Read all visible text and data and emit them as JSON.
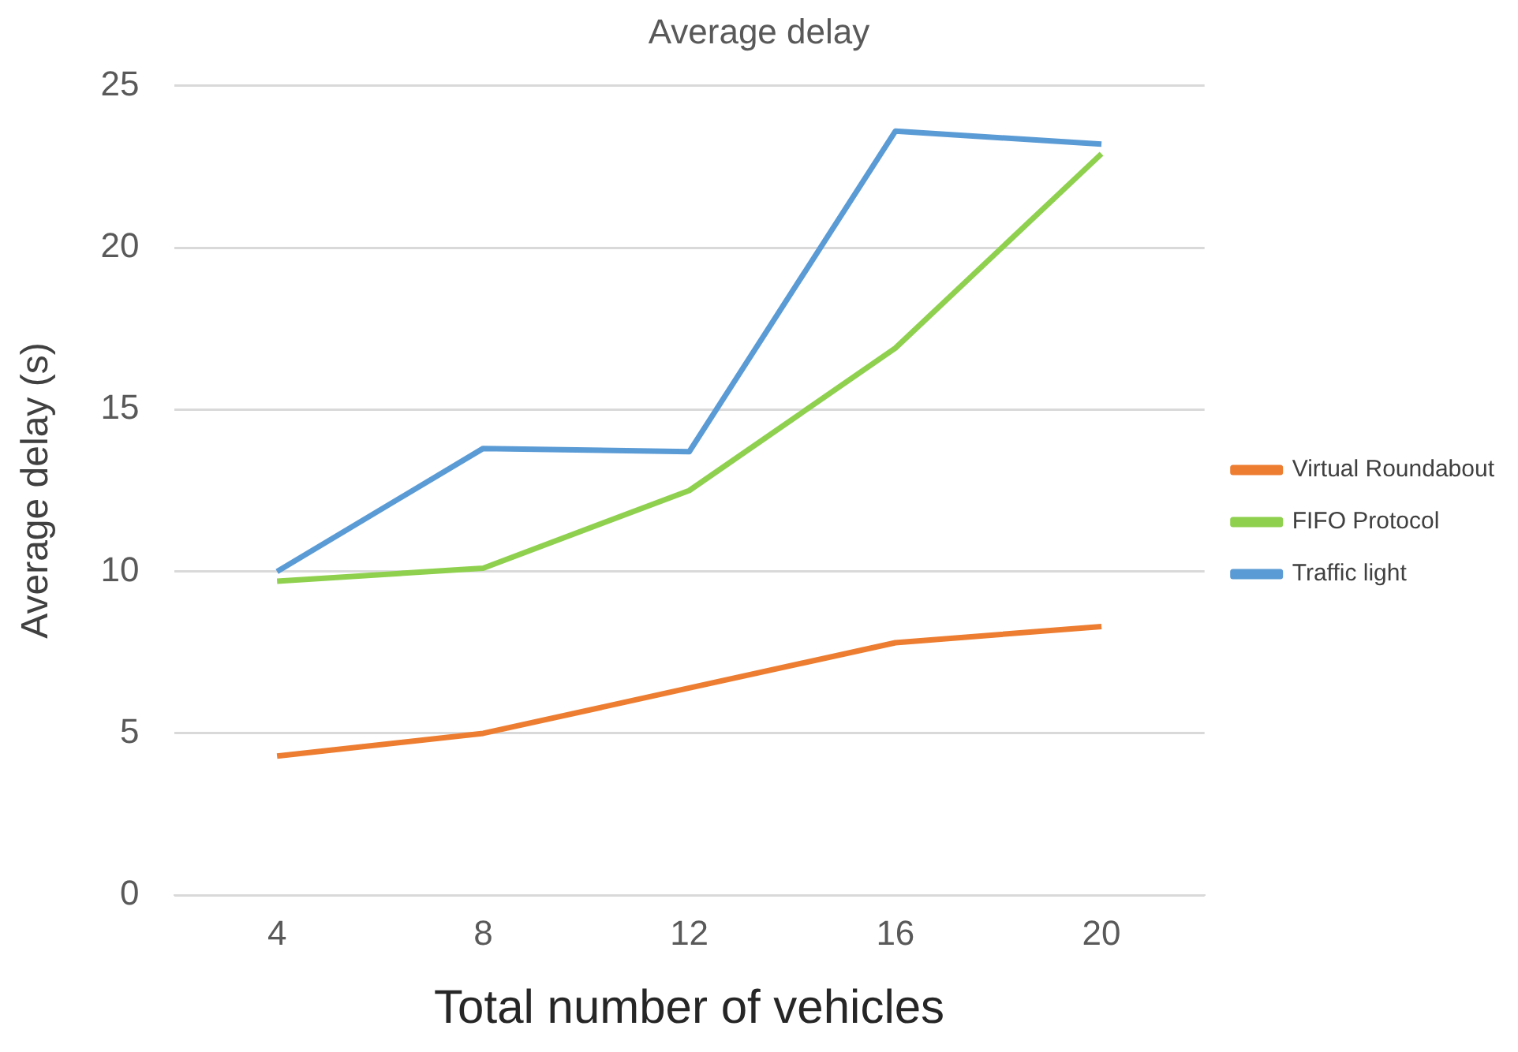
{
  "chart_data": {
    "type": "line",
    "title": "Average delay",
    "xlabel": "Total number of vehicles",
    "ylabel": "Average delay (s)",
    "categories": [
      "4",
      "8",
      "12",
      "16",
      "20"
    ],
    "series": [
      {
        "name": "Virtual Roundabout",
        "color": "#ed7d31",
        "values": [
          4.3,
          5.0,
          6.4,
          7.8,
          8.3
        ]
      },
      {
        "name": "FIFO Protocol",
        "color": "#8fd14f",
        "values": [
          9.7,
          10.1,
          12.5,
          16.9,
          22.9
        ]
      },
      {
        "name": "Traffic light",
        "color": "#5b9bd5",
        "values": [
          10.0,
          13.8,
          13.7,
          23.6,
          23.2
        ]
      }
    ],
    "ylim": [
      0,
      25
    ],
    "yticks": [
      0,
      5,
      10,
      15,
      20,
      25
    ],
    "grid": "y",
    "legend": "right",
    "marker": "none",
    "line_style": "solid"
  }
}
